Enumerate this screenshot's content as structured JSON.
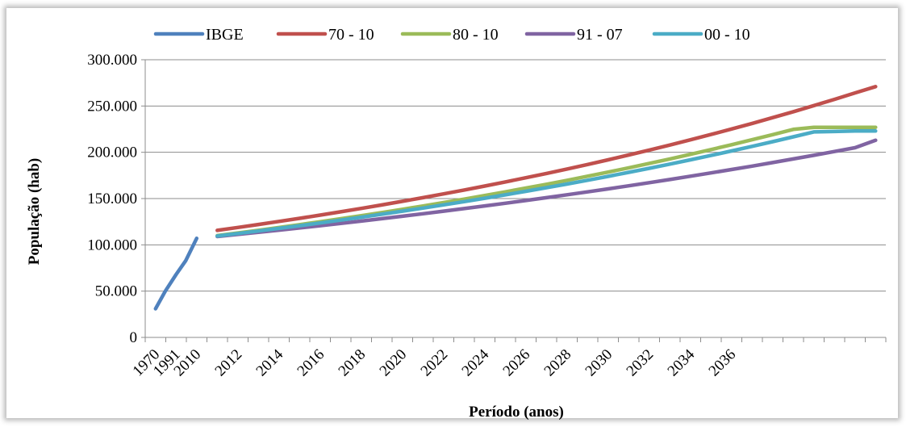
{
  "chart_data": {
    "type": "line",
    "title": "",
    "xlabel": "Período (anos)",
    "ylabel": "População (hab)",
    "ylim": [
      0,
      300000
    ],
    "grid": "horizontal",
    "legend_position": "top",
    "x_tick_labels": [
      "1970",
      "1991",
      "2010",
      "2012",
      "2014",
      "2016",
      "2018",
      "2020",
      "2022",
      "2024",
      "2026",
      "2028",
      "2030",
      "2032",
      "2034",
      "2036"
    ],
    "y_tick_labels": [
      "0",
      "50.000",
      "100.000",
      "150.000",
      "200.000",
      "250.000",
      "300.000"
    ],
    "y_ticks": [
      0,
      50000,
      100000,
      150000,
      200000,
      250000,
      300000
    ],
    "series": [
      {
        "name": "IBGE",
        "color": "#4F81BD",
        "points": [
          [
            1970,
            31000
          ],
          [
            1980,
            50000
          ],
          [
            1991,
            68000
          ],
          [
            2000,
            83000
          ],
          [
            2010,
            107000
          ]
        ]
      },
      {
        "name": "70 - 10",
        "color": "#C0504D",
        "points": [
          [
            2011,
            115658
          ],
          [
            2012,
            118781
          ],
          [
            2013,
            121989
          ],
          [
            2014,
            125282
          ],
          [
            2015,
            128665
          ],
          [
            2016,
            132139
          ],
          [
            2017,
            135707
          ],
          [
            2018,
            139371
          ],
          [
            2019,
            143134
          ],
          [
            2020,
            146999
          ],
          [
            2021,
            150968
          ],
          [
            2022,
            155044
          ],
          [
            2023,
            159230
          ],
          [
            2024,
            163529
          ],
          [
            2025,
            167944
          ],
          [
            2026,
            172479
          ],
          [
            2027,
            177136
          ],
          [
            2028,
            181918
          ],
          [
            2029,
            186830
          ],
          [
            2030,
            191874
          ],
          [
            2031,
            197055
          ],
          [
            2032,
            202376
          ],
          [
            2033,
            207840
          ],
          [
            2034,
            213451
          ],
          [
            2035,
            219214
          ],
          [
            2036,
            225133
          ],
          [
            2037,
            231212
          ],
          [
            2038,
            237455
          ],
          [
            2039,
            243866
          ],
          [
            2040,
            250450
          ],
          [
            2041,
            257212
          ],
          [
            2042,
            264157
          ],
          [
            2043,
            271000
          ]
        ]
      },
      {
        "name": "80 - 10",
        "color": "#9BBB59",
        "points": [
          [
            2011,
            110000
          ],
          [
            2012,
            112843
          ],
          [
            2013,
            115759
          ],
          [
            2014,
            118751
          ],
          [
            2015,
            121821
          ],
          [
            2016,
            124969
          ],
          [
            2017,
            128199
          ],
          [
            2018,
            131513
          ],
          [
            2019,
            134912
          ],
          [
            2020,
            138399
          ],
          [
            2021,
            141976
          ],
          [
            2022,
            145645
          ],
          [
            2023,
            149410
          ],
          [
            2024,
            153271
          ],
          [
            2025,
            157233
          ],
          [
            2026,
            161297
          ],
          [
            2027,
            165466
          ],
          [
            2028,
            169742
          ],
          [
            2029,
            174130
          ],
          [
            2030,
            178630
          ],
          [
            2031,
            183247
          ],
          [
            2032,
            187983
          ],
          [
            2033,
            192842
          ],
          [
            2034,
            197826
          ],
          [
            2035,
            202939
          ],
          [
            2036,
            208185
          ],
          [
            2037,
            213565
          ],
          [
            2038,
            219085
          ],
          [
            2039,
            224748
          ],
          [
            2040,
            227000
          ],
          [
            2041,
            227000
          ],
          [
            2042,
            227000
          ],
          [
            2043,
            227000
          ]
        ]
      },
      {
        "name": "91 - 07",
        "color": "#8064A2",
        "points": [
          [
            2011,
            109000
          ],
          [
            2012,
            111243
          ],
          [
            2013,
            113531
          ],
          [
            2014,
            115868
          ],
          [
            2015,
            118252
          ],
          [
            2016,
            120685
          ],
          [
            2017,
            123168
          ],
          [
            2018,
            125703
          ],
          [
            2019,
            128289
          ],
          [
            2020,
            130929
          ],
          [
            2021,
            133623
          ],
          [
            2022,
            136373
          ],
          [
            2023,
            139179
          ],
          [
            2024,
            142042
          ],
          [
            2025,
            144965
          ],
          [
            2026,
            147948
          ],
          [
            2027,
            150992
          ],
          [
            2028,
            154099
          ],
          [
            2029,
            157270
          ],
          [
            2030,
            160506
          ],
          [
            2031,
            163809
          ],
          [
            2032,
            167179
          ],
          [
            2033,
            170619
          ],
          [
            2034,
            174130
          ],
          [
            2035,
            177713
          ],
          [
            2036,
            181369
          ],
          [
            2037,
            185101
          ],
          [
            2038,
            188910
          ],
          [
            2039,
            192797
          ],
          [
            2040,
            196764
          ],
          [
            2041,
            200813
          ],
          [
            2042,
            204945
          ],
          [
            2043,
            213000
          ]
        ]
      },
      {
        "name": "00 - 10",
        "color": "#4BACC6",
        "points": [
          [
            2011,
            109500
          ],
          [
            2012,
            112200
          ],
          [
            2013,
            114970
          ],
          [
            2014,
            117810
          ],
          [
            2015,
            120720
          ],
          [
            2016,
            123700
          ],
          [
            2017,
            126750
          ],
          [
            2018,
            129880
          ],
          [
            2019,
            133090
          ],
          [
            2020,
            136370
          ],
          [
            2021,
            139740
          ],
          [
            2022,
            143190
          ],
          [
            2023,
            146720
          ],
          [
            2024,
            150340
          ],
          [
            2025,
            154050
          ],
          [
            2026,
            157850
          ],
          [
            2027,
            161750
          ],
          [
            2028,
            165740
          ],
          [
            2029,
            169830
          ],
          [
            2030,
            174020
          ],
          [
            2031,
            178320
          ],
          [
            2032,
            182720
          ],
          [
            2033,
            187230
          ],
          [
            2034,
            191850
          ],
          [
            2035,
            196580
          ],
          [
            2036,
            201430
          ],
          [
            2037,
            206400
          ],
          [
            2038,
            211500
          ],
          [
            2039,
            216720
          ],
          [
            2040,
            222070
          ],
          [
            2041,
            222500
          ],
          [
            2042,
            223000
          ],
          [
            2043,
            223000
          ]
        ]
      }
    ]
  }
}
